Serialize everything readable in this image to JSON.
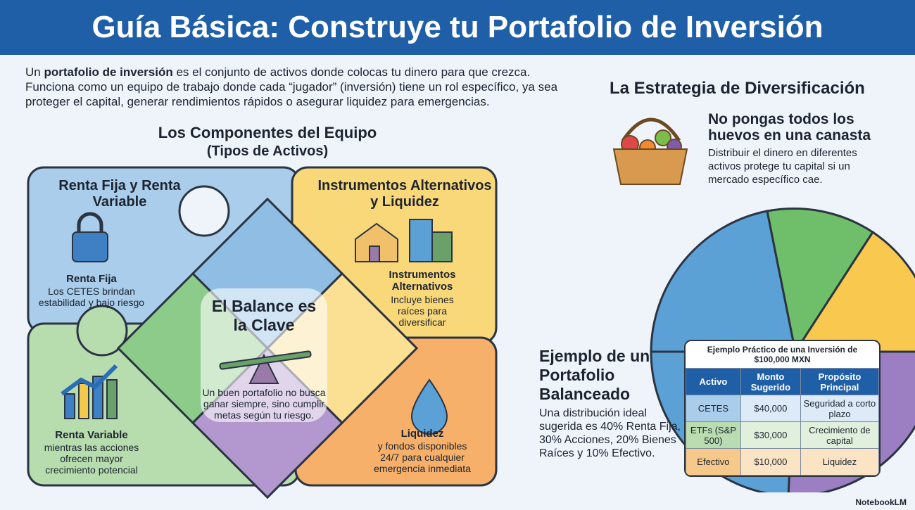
{
  "header": {
    "title": "Guía Básica: Construye tu Portafolio de Inversión"
  },
  "intro": {
    "before": "Un ",
    "bold": "portafolio de inversión",
    "after": " es el conjunto de activos donde colocas tu dinero para que crezca. Funciona como un equipo de trabajo donde cada “jugador” (inversión) tiene un rol específico, ya sea proteger el capital, generar rendimientos rápidos o asegurar liquidez para emergencias."
  },
  "components": {
    "title": "Los Componentes del Equipo",
    "subtitle": "(Tipos de Activos)",
    "fixed_variable": {
      "title": "Renta Fija y Renta Variable",
      "fixed": {
        "title": "Renta Fija",
        "text": "Los CETES brindan estabilidad y bajo riesgo"
      },
      "variable": {
        "title": "Renta Variable",
        "text": "mientras las acciones ofrecen mayor crecimiento potencial"
      }
    },
    "alternatives": {
      "title": "Instrumentos Alternativos y Liquidez",
      "alt": {
        "title": "Instrumentos Alternativos",
        "text": "Incluye bienes raíces para diversificar"
      },
      "liquidity": {
        "title": "Liquidez",
        "text": "y fondos disponibles 24/7 para cualquier emergencia inmediata"
      }
    },
    "balance": {
      "title": "El Balance es la Clave",
      "text": "Un buen portafolio no busca ganar siempre, sino cumplir metas según tu riesgo."
    }
  },
  "strategy": {
    "title": "La Estrategia de Diversificación",
    "heading": "No pongas todos los huevos en una canasta",
    "text": "Distribuir el dinero en diferentes activos protege tu capital si un mercado específico cae."
  },
  "example": {
    "title": "Ejemplo de un Portafolio Balanceado",
    "text": "Una distribución ideal sugerida es 40% Renta Fija, 30% Acciones, 20% Bienes Raíces y 10% Efectivo.",
    "table": {
      "caption": "Ejemplo Práctico de una Inversión de $100,000 MXN",
      "header": [
        "Activo",
        "Monto Sugerido",
        "Propósito Principal"
      ],
      "rows": [
        [
          "CETES",
          "$40,000",
          "Seguridad a corto plazo"
        ],
        [
          "ETFs (S&P 500)",
          "$30,000",
          "Crecimiento de capital"
        ],
        [
          "Efectivo",
          "$10,000",
          "Liquidez"
        ]
      ]
    }
  },
  "footer": {
    "brand": "NotebookLM"
  }
}
